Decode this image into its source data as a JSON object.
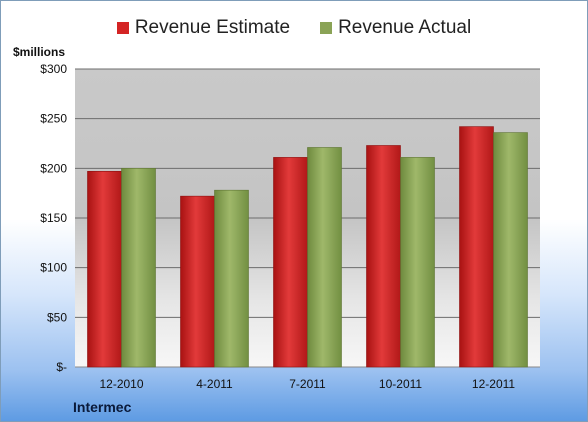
{
  "chart_data": {
    "type": "bar",
    "categories": [
      "12-2010",
      "4-2011",
      "7-2011",
      "10-2011",
      "12-2011"
    ],
    "series": [
      {
        "name": "Revenue Estimate",
        "values": [
          197,
          172,
          211,
          223,
          242
        ],
        "color": "#d42424"
      },
      {
        "name": "Revenue Actual",
        "values": [
          200,
          178,
          221,
          211,
          236
        ],
        "color": "#8aa356"
      }
    ],
    "ylim": [
      0,
      300
    ],
    "yticks": [
      0,
      50,
      100,
      150,
      200,
      250,
      300
    ],
    "ytick_labels": [
      "$-",
      "$50",
      "$100",
      "$150",
      "$200",
      "$250",
      "$300"
    ],
    "ylabel": "$millions",
    "grid": true,
    "legend": "top-center"
  },
  "footer": {
    "company": "Intermec"
  }
}
